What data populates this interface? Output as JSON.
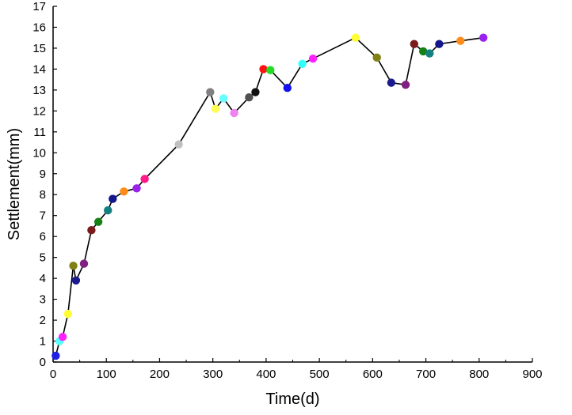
{
  "chart_data": {
    "type": "line",
    "title": "",
    "xlabel": "Time(d)",
    "ylabel": "Settlement(mm)",
    "xlim": [
      0,
      900
    ],
    "ylim": [
      0,
      17
    ],
    "xticks": [
      0,
      100,
      200,
      300,
      400,
      500,
      600,
      700,
      800,
      900
    ],
    "yticks": [
      0,
      1,
      2,
      3,
      4,
      5,
      6,
      7,
      8,
      9,
      10,
      11,
      12,
      13,
      14,
      15,
      16,
      17
    ],
    "grid": false,
    "legend": "none",
    "series": [
      {
        "line_color": "#000000",
        "points": [
          {
            "x": 5,
            "y": 0.3,
            "color": "#1f1fe6"
          },
          {
            "x": 12,
            "y": 1.0,
            "color": "#55ffff"
          },
          {
            "x": 18,
            "y": 1.2,
            "color": "#ff22ff"
          },
          {
            "x": 28,
            "y": 2.3,
            "color": "#ffff33"
          },
          {
            "x": 38,
            "y": 4.6,
            "color": "#808015"
          },
          {
            "x": 43,
            "y": 3.9,
            "color": "#1a1a8c"
          },
          {
            "x": 58,
            "y": 4.7,
            "color": "#802080"
          },
          {
            "x": 72,
            "y": 6.3,
            "color": "#7a1a1a"
          },
          {
            "x": 85,
            "y": 6.7,
            "color": "#158015"
          },
          {
            "x": 103,
            "y": 7.25,
            "color": "#158080"
          },
          {
            "x": 112,
            "y": 7.8,
            "color": "#15158c"
          },
          {
            "x": 133,
            "y": 8.15,
            "color": "#ff8c1a"
          },
          {
            "x": 157,
            "y": 8.3,
            "color": "#9922ee"
          },
          {
            "x": 172,
            "y": 8.75,
            "color": "#ff1a8c"
          },
          {
            "x": 236,
            "y": 10.4,
            "color": "#c0c0c0"
          },
          {
            "x": 295,
            "y": 12.9,
            "color": "#808080"
          },
          {
            "x": 305,
            "y": 12.1,
            "color": "#ffff55"
          },
          {
            "x": 320,
            "y": 12.6,
            "color": "#66ffff"
          },
          {
            "x": 340,
            "y": 11.9,
            "color": "#ee82ee"
          },
          {
            "x": 368,
            "y": 12.65,
            "color": "#505050"
          },
          {
            "x": 380,
            "y": 12.9,
            "color": "#111111"
          },
          {
            "x": 395,
            "y": 14.0,
            "color": "#ff1111"
          },
          {
            "x": 408,
            "y": 13.95,
            "color": "#22dd22"
          },
          {
            "x": 440,
            "y": 13.1,
            "color": "#1111ee"
          },
          {
            "x": 468,
            "y": 14.25,
            "color": "#33ffff"
          },
          {
            "x": 488,
            "y": 14.5,
            "color": "#ff22ff"
          },
          {
            "x": 568,
            "y": 15.5,
            "color": "#ffff33"
          },
          {
            "x": 608,
            "y": 14.55,
            "color": "#808015"
          },
          {
            "x": 635,
            "y": 13.35,
            "color": "#1a1a8c"
          },
          {
            "x": 662,
            "y": 13.25,
            "color": "#802080"
          },
          {
            "x": 678,
            "y": 15.2,
            "color": "#7a1a1a"
          },
          {
            "x": 695,
            "y": 14.85,
            "color": "#158015"
          },
          {
            "x": 707,
            "y": 14.75,
            "color": "#158080"
          },
          {
            "x": 725,
            "y": 15.2,
            "color": "#15158c"
          },
          {
            "x": 765,
            "y": 15.35,
            "color": "#ff8c1a"
          },
          {
            "x": 808,
            "y": 15.5,
            "color": "#9922ee"
          }
        ]
      }
    ]
  }
}
